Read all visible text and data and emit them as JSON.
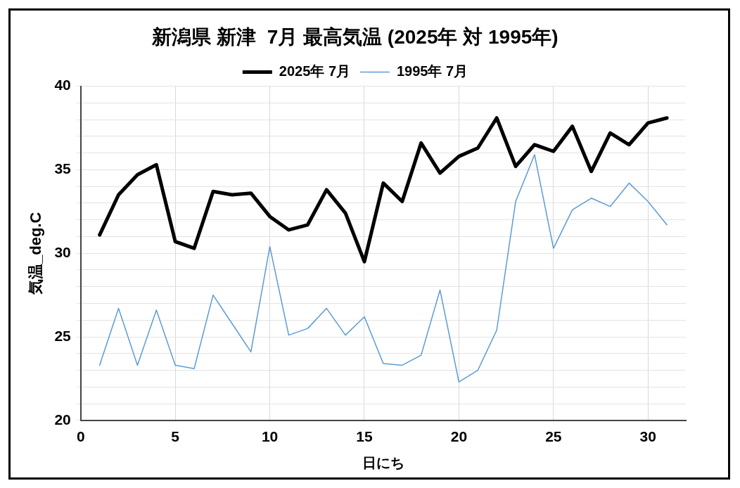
{
  "chart_data": {
    "type": "line",
    "title": "新潟県 新津  7月 最高気温 (2025年 対 1995年)",
    "xlabel": "日にち",
    "ylabel": "気温_deg.C",
    "x": [
      1,
      2,
      3,
      4,
      5,
      6,
      7,
      8,
      9,
      10,
      11,
      12,
      13,
      14,
      15,
      16,
      17,
      18,
      19,
      20,
      21,
      22,
      23,
      24,
      25,
      26,
      27,
      28,
      29,
      30,
      31
    ],
    "series": [
      {
        "name": "2025年 7月",
        "color": "#000000",
        "values": [
          31.1,
          33.5,
          34.7,
          35.3,
          30.7,
          30.3,
          33.7,
          33.5,
          33.6,
          32.2,
          31.4,
          31.7,
          33.8,
          32.4,
          29.5,
          34.2,
          33.1,
          36.6,
          34.8,
          35.8,
          36.3,
          38.1,
          35.2,
          36.5,
          36.1,
          37.6,
          34.9,
          37.2,
          36.5,
          37.8,
          38.1
        ]
      },
      {
        "name": "1995年 7月",
        "color": "#5b9bd5",
        "values": [
          23.3,
          26.7,
          23.3,
          26.6,
          23.3,
          23.1,
          27.5,
          25.8,
          24.1,
          30.4,
          25.1,
          25.5,
          26.7,
          25.1,
          26.2,
          23.4,
          23.3,
          23.9,
          27.8,
          22.3,
          23.0,
          25.4,
          33.1,
          35.9,
          30.3,
          32.6,
          33.3,
          32.8,
          34.2,
          33.1,
          31.7
        ]
      }
    ],
    "xlim": [
      0,
      32
    ],
    "xticks": [
      0,
      5,
      10,
      15,
      20,
      25,
      30
    ],
    "ylim": [
      20,
      40
    ],
    "yticks": [
      20,
      {
        "value": 21,
        "label": null
      },
      {
        "value": 22,
        "label": null
      },
      {
        "value": 23,
        "label": null
      },
      {
        "value": 24,
        "label": null
      },
      25,
      {
        "value": 26,
        "label": null
      },
      {
        "value": 27,
        "label": null
      },
      {
        "value": 28,
        "label": null
      },
      {
        "value": 29,
        "label": null
      },
      30,
      {
        "value": 31,
        "label": null
      },
      {
        "value": 32,
        "label": null
      },
      {
        "value": 33,
        "label": null
      },
      {
        "value": 34,
        "label": null
      },
      35,
      {
        "value": 36,
        "label": null
      },
      {
        "value": 37,
        "label": null
      },
      {
        "value": 38,
        "label": null
      },
      {
        "value": 39,
        "label": null
      },
      40
    ],
    "grid": true,
    "legend": "top",
    "marker": "none",
    "line_style": "solid"
  }
}
